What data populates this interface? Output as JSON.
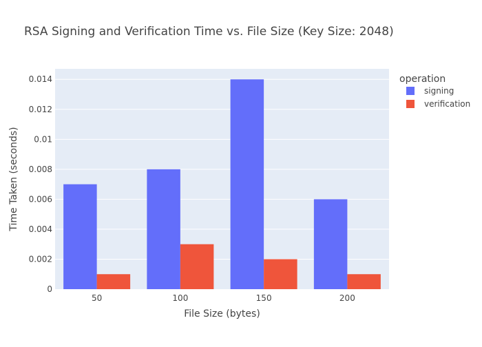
{
  "chart_data": {
    "type": "bar",
    "title": "RSA Signing and Verification Time vs. File Size (Key Size: 2048)",
    "xlabel": "File Size (bytes)",
    "ylabel": "Time Taken (seconds)",
    "categories": [
      "50",
      "100",
      "150",
      "200"
    ],
    "series": [
      {
        "name": "signing",
        "values": [
          0.007,
          0.008,
          0.014,
          0.006
        ],
        "color": "#636efa"
      },
      {
        "name": "verification",
        "values": [
          0.001,
          0.003,
          0.002,
          0.001
        ],
        "color": "#ef553b"
      }
    ],
    "ylim": [
      0,
      0.0147
    ],
    "yticks": [
      0,
      0.002,
      0.004,
      0.006,
      0.008,
      0.01,
      0.012,
      0.014
    ],
    "ytick_labels": [
      "0",
      "0.002",
      "0.004",
      "0.006",
      "0.008",
      "0.01",
      "0.012",
      "0.014"
    ],
    "legend": {
      "title": "operation",
      "placement": "right"
    },
    "grid": true,
    "plot_background": "#e5ecf6"
  }
}
